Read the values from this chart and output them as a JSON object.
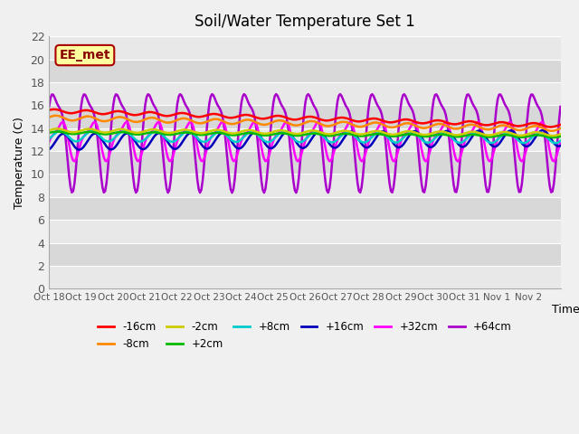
{
  "title": "Soil/Water Temperature Set 1",
  "xlabel": "Time",
  "ylabel": "Temperature (C)",
  "ylim": [
    0,
    22
  ],
  "yticks": [
    0,
    2,
    4,
    6,
    8,
    10,
    12,
    14,
    16,
    18,
    20,
    22
  ],
  "x_labels": [
    "Oct 18",
    "Oct 19",
    "Oct 20",
    "Oct 21",
    "Oct 22",
    "Oct 23",
    "Oct 24",
    "Oct 25",
    "Oct 26",
    "Oct 27",
    "Oct 28",
    "Oct 29",
    "Oct 30",
    "Oct 31",
    "Nov 1",
    "Nov 2"
  ],
  "watermark": "EE_met",
  "colors": {
    "-16cm": "#ff0000",
    "-8cm": "#ff8800",
    "-2cm": "#cccc00",
    "+2cm": "#00bb00",
    "+8cm": "#00cccc",
    "+16cm": "#0000bb",
    "+32cm": "#ff00ff",
    "+64cm": "#aa00cc"
  },
  "legend_order": [
    "-16cm",
    "-8cm",
    "-2cm",
    "+2cm",
    "+8cm",
    "+16cm",
    "+32cm",
    "+64cm"
  ],
  "fig_bg": "#f0f0f0",
  "ax_bg": "#e8e8e8"
}
